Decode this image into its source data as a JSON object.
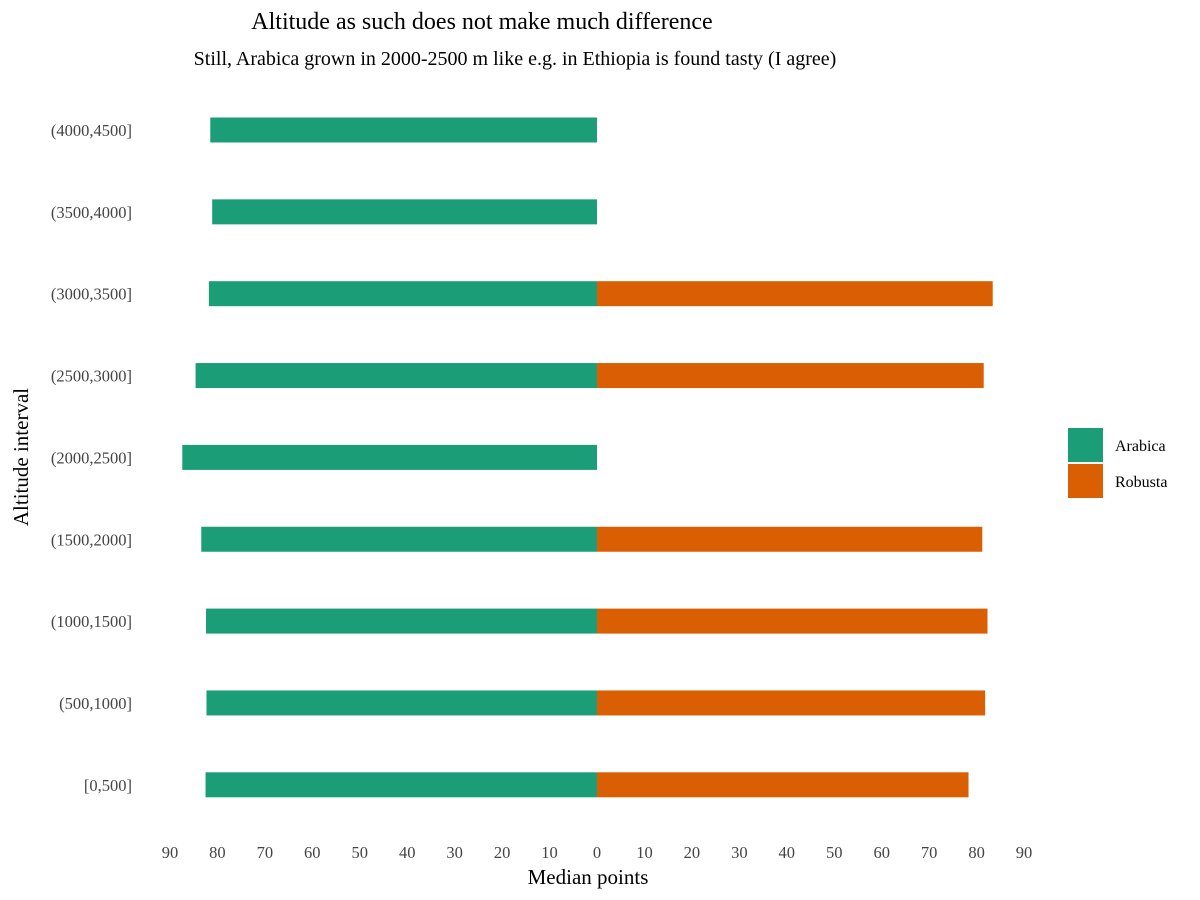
{
  "chart_data": {
    "type": "bar",
    "orientation": "horizontal",
    "layout": "diverging",
    "title": "Altitude as such does not make much difference",
    "subtitle": "Still, Arabica grown in 2000-2500 m like e.g. in Ethiopia is found tasty (I agree)",
    "xlabel": "Median points",
    "ylabel": "Altitude interval",
    "categories": [
      "[0,500]",
      "(500,1000]",
      "(1000,1500]",
      "(1500,2000]",
      "(2000,2500]",
      "(2500,3000]",
      "(3000,3500]",
      "(3500,4000]",
      "(4000,4500]"
    ],
    "xlim": [
      -90,
      90
    ],
    "x_ticks": [
      {
        "value": -90,
        "label": "90"
      },
      {
        "value": -80,
        "label": "80"
      },
      {
        "value": -70,
        "label": "70"
      },
      {
        "value": -60,
        "label": "60"
      },
      {
        "value": -50,
        "label": "50"
      },
      {
        "value": -40,
        "label": "40"
      },
      {
        "value": -30,
        "label": "30"
      },
      {
        "value": -20,
        "label": "20"
      },
      {
        "value": -10,
        "label": "10"
      },
      {
        "value": 0,
        "label": "0"
      },
      {
        "value": 10,
        "label": "10"
      },
      {
        "value": 20,
        "label": "20"
      },
      {
        "value": 30,
        "label": "30"
      },
      {
        "value": 40,
        "label": "40"
      },
      {
        "value": 50,
        "label": "50"
      },
      {
        "value": 60,
        "label": "60"
      },
      {
        "value": 70,
        "label": "70"
      },
      {
        "value": 80,
        "label": "80"
      },
      {
        "value": 90,
        "label": "90"
      }
    ],
    "series": [
      {
        "name": "Arabica",
        "direction": "left",
        "color": "#1b9e77",
        "values": [
          82.5,
          82.3,
          82.4,
          83.4,
          87.4,
          84.6,
          81.8,
          81.1,
          81.5
        ]
      },
      {
        "name": "Robusta",
        "direction": "right",
        "color": "#d95f02",
        "values": [
          78.3,
          81.8,
          82.3,
          81.2,
          null,
          81.5,
          83.4,
          null,
          null
        ]
      }
    ],
    "grid": false,
    "legend_position": "right"
  }
}
